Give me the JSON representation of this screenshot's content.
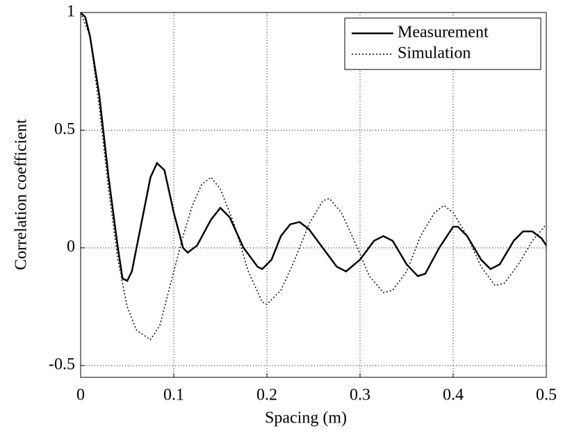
{
  "chart_data": {
    "type": "line",
    "xlabel": "Spacing (m)",
    "ylabel": "Correlation coefficient",
    "xlim": [
      0,
      0.5
    ],
    "ylim": [
      -0.55,
      1
    ],
    "xticks": [
      0,
      0.1,
      0.2,
      0.3,
      0.4,
      0.5
    ],
    "yticks": [
      -0.5,
      0,
      0.5,
      1
    ],
    "grid": true,
    "legend": "upper right",
    "series": [
      {
        "name": "Measurement",
        "color": "#000000",
        "style": "solid",
        "x": [
          0,
          0.005,
          0.01,
          0.02,
          0.03,
          0.04,
          0.045,
          0.05,
          0.055,
          0.065,
          0.075,
          0.082,
          0.09,
          0.1,
          0.11,
          0.115,
          0.125,
          0.14,
          0.15,
          0.16,
          0.175,
          0.19,
          0.195,
          0.205,
          0.215,
          0.225,
          0.235,
          0.245,
          0.26,
          0.275,
          0.285,
          0.3,
          0.315,
          0.325,
          0.335,
          0.35,
          0.362,
          0.37,
          0.385,
          0.4,
          0.405,
          0.415,
          0.43,
          0.44,
          0.45,
          0.465,
          0.475,
          0.485,
          0.495,
          0.5
        ],
        "values": [
          1,
          0.98,
          0.9,
          0.65,
          0.3,
          0,
          -0.13,
          -0.14,
          -0.1,
          0.1,
          0.3,
          0.36,
          0.33,
          0.15,
          0,
          -0.02,
          0.01,
          0.12,
          0.17,
          0.13,
          0,
          -0.08,
          -0.09,
          -0.05,
          0.05,
          0.1,
          0.11,
          0.08,
          0,
          -0.08,
          -0.1,
          -0.05,
          0.03,
          0.05,
          0.03,
          -0.07,
          -0.12,
          -0.11,
          0,
          0.09,
          0.09,
          0.05,
          -0.05,
          -0.09,
          -0.07,
          0.03,
          0.07,
          0.07,
          0.04,
          0.01
        ]
      },
      {
        "name": "Simulation",
        "color": "#000000",
        "style": "dotted",
        "x": [
          0,
          0.01,
          0.02,
          0.03,
          0.04,
          0.05,
          0.06,
          0.075,
          0.085,
          0.1,
          0.11,
          0.12,
          0.13,
          0.14,
          0.15,
          0.165,
          0.18,
          0.195,
          0.2,
          0.215,
          0.23,
          0.245,
          0.26,
          0.267,
          0.28,
          0.295,
          0.31,
          0.325,
          0.335,
          0.35,
          0.365,
          0.38,
          0.39,
          0.4,
          0.415,
          0.43,
          0.445,
          0.455,
          0.47,
          0.485,
          0.5
        ],
        "values": [
          1,
          0.9,
          0.6,
          0.25,
          -0.05,
          -0.25,
          -0.35,
          -0.39,
          -0.33,
          -0.1,
          0.05,
          0.18,
          0.27,
          0.3,
          0.25,
          0.1,
          -0.1,
          -0.23,
          -0.24,
          -0.18,
          -0.05,
          0.1,
          0.2,
          0.21,
          0.15,
          0.02,
          -0.12,
          -0.19,
          -0.18,
          -0.1,
          0.05,
          0.15,
          0.18,
          0.15,
          0.05,
          -0.08,
          -0.16,
          -0.15,
          -0.07,
          0.03,
          0.1
        ]
      }
    ]
  }
}
